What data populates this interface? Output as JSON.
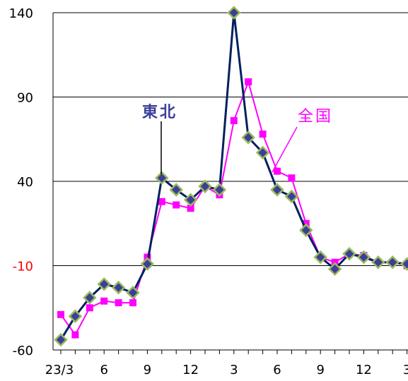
{
  "chart_data": {
    "type": "line",
    "x_tick_labels": [
      "23/3",
      "6",
      "9",
      "12",
      "3",
      "6",
      "9",
      "12",
      "3"
    ],
    "y_tick_labels": [
      "140",
      "90",
      "40",
      "-10",
      "-60"
    ],
    "ylim": [
      -60,
      140
    ],
    "grid": true,
    "colors": {
      "tohoku_line": "#002060",
      "tohoku_marker": "#3b3f9a",
      "tohoku_marker_edge": "#9bbb59",
      "zenkoku": "#ff00ff",
      "negative_label": "#ff0000"
    },
    "series": [
      {
        "name": "東北",
        "values": [
          -54,
          -40,
          -29,
          -21,
          -23,
          -26,
          -9,
          42,
          35,
          29,
          37,
          35,
          140,
          66,
          57,
          35,
          31,
          11,
          -5,
          -12,
          -3,
          -5,
          -8,
          -8,
          -9
        ]
      },
      {
        "name": "全国",
        "values": [
          -39,
          -51,
          -35,
          -31,
          -32,
          -32,
          -5,
          28,
          26,
          24,
          37,
          32,
          76,
          99,
          68,
          46,
          42,
          15,
          -5,
          -8,
          -3,
          -4,
          -8,
          -8,
          -10
        ]
      }
    ]
  }
}
